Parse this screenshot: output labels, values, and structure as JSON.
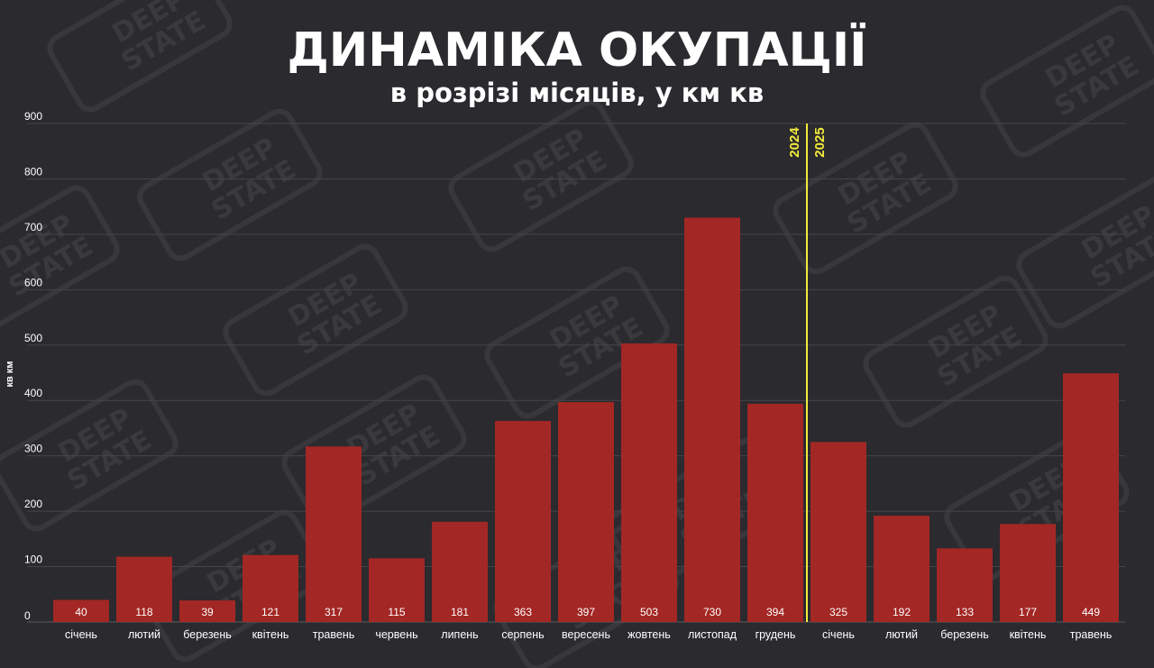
{
  "chart_data": {
    "type": "bar",
    "title": "ДИНАМІКА ОКУПАЦІЇ",
    "subtitle": "в розрізі місяців, у км кв",
    "ylabel": "кв км",
    "xlabel": "",
    "ylim": [
      0,
      900
    ],
    "yticks": [
      0,
      100,
      200,
      300,
      400,
      500,
      600,
      700,
      800,
      900
    ],
    "grid": true,
    "bar_color": "#a32724",
    "divider_color": "#f2ea3c",
    "categories": [
      "січень",
      "лютий",
      "березень",
      "квітень",
      "травень",
      "червень",
      "липень",
      "серпень",
      "вересень",
      "жовтень",
      "листопад",
      "грудень",
      "січень",
      "лютий",
      "березень",
      "квітень",
      "травень"
    ],
    "values": [
      40,
      118,
      39,
      121,
      317,
      115,
      181,
      363,
      397,
      503,
      730,
      394,
      325,
      192,
      133,
      177,
      449
    ],
    "year_markers": [
      {
        "label": "2024",
        "side": "left",
        "after_index": 11
      },
      {
        "label": "2025",
        "side": "right",
        "after_index": 11
      }
    ],
    "watermark": "DEEP STATE"
  }
}
